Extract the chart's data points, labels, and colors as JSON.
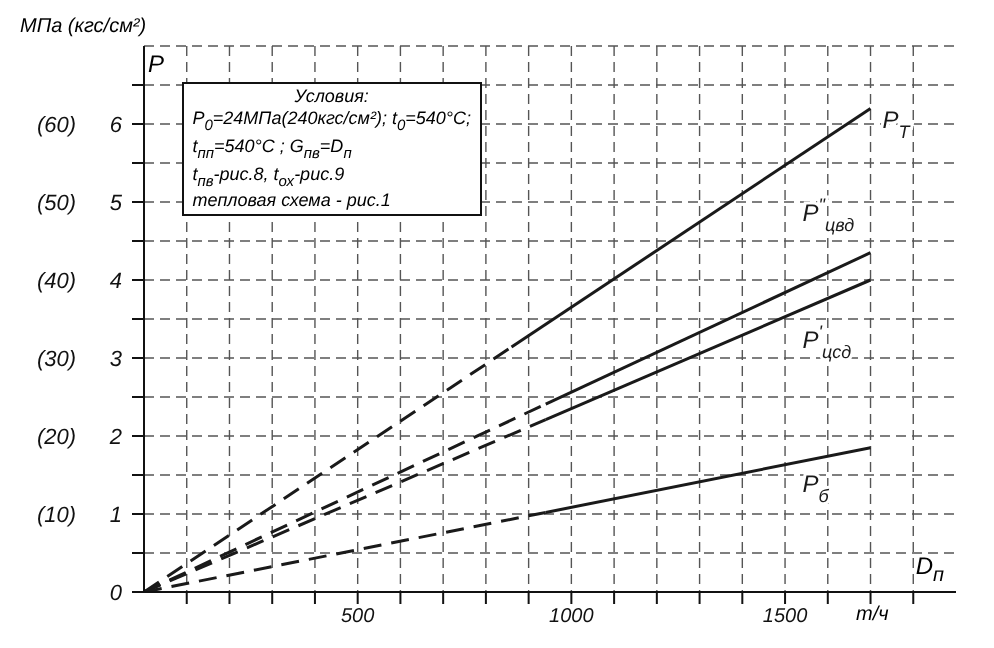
{
  "chart_data": {
    "type": "line",
    "xlabel": "D$_{п}$",
    "ylabel": "P",
    "annotations": [
      "МПа (кгс/см²)",
      "т/ч",
      "Условия:",
      "P$_{0}$=24МПа(240кгс/см²); t$_{0}$=540°C;",
      "t$_{пп}$=540°C ;  G$_{пв}$=D$_{п}$",
      "t$_{пв}$-рис.8,   t$_{ох}$-рис.9",
      "тепловая схема - рис.1"
    ],
    "xlim": [
      0,
      1900
    ],
    "ylim": [
      0,
      7
    ],
    "xticks": [
      {
        "value": 100,
        "label": null
      },
      {
        "value": 200,
        "label": null
      },
      {
        "value": 300,
        "label": null
      },
      {
        "value": 400,
        "label": null
      },
      500,
      {
        "value": 600,
        "label": null
      },
      {
        "value": 700,
        "label": null
      },
      {
        "value": 800,
        "label": null
      },
      {
        "value": 900,
        "label": null
      },
      1000,
      {
        "value": 1100,
        "label": null
      },
      {
        "value": 1200,
        "label": null
      },
      {
        "value": 1300,
        "label": null
      },
      {
        "value": 1400,
        "label": null
      },
      1500,
      {
        "value": 1600,
        "label": null
      },
      {
        "value": 1700,
        "label": null
      },
      {
        "value": 1800,
        "label": null
      }
    ],
    "yticks": [
      0,
      {
        "value": 0.5,
        "label": null
      },
      1,
      {
        "value": 1.5,
        "label": null
      },
      2,
      {
        "value": 2.5,
        "label": null
      },
      3,
      {
        "value": 3.5,
        "label": null
      },
      4,
      {
        "value": 4.5,
        "label": null
      },
      5,
      {
        "value": 5.5,
        "label": null
      },
      6,
      {
        "value": 6.5,
        "label": null
      }
    ],
    "y2lim": [
      0,
      70
    ],
    "y2ticks": [
      {
        "value": 10,
        "label": "(10)"
      },
      {
        "value": 20,
        "label": "(20)"
      },
      {
        "value": 30,
        "label": "(30)"
      },
      {
        "value": 40,
        "label": "(40)"
      },
      {
        "value": 50,
        "label": "(50)"
      },
      {
        "value": 60,
        "label": "(60)"
      }
    ],
    "grid": true,
    "marker": "none",
    "series": [
      {
        "color": "#1a1a1a",
        "line_style": "dashed",
        "x": [
          0,
          860
        ],
        "values": [
          0,
          3.14
        ]
      },
      {
        "name": "P$_{T}$",
        "color": "#1a1a1a",
        "line_style": "solid",
        "x": [
          860,
          1700
        ],
        "values": [
          3.14,
          6.2
        ]
      },
      {
        "color": "#1a1a1a",
        "line_style": "dashed",
        "x": [
          0,
          940
        ],
        "values": [
          0,
          2.41
        ]
      },
      {
        "name": "P$^{\"}$$_{цвд}$",
        "color": "#1a1a1a",
        "line_style": "solid",
        "x": [
          940,
          1700
        ],
        "values": [
          2.41,
          4.35
        ]
      },
      {
        "color": "#1a1a1a",
        "line_style": "dashed",
        "x": [
          0,
          940
        ],
        "values": [
          0,
          2.21
        ]
      },
      {
        "name": "P$^{'}$$_{цсд}$",
        "color": "#1a1a1a",
        "line_style": "solid",
        "x": [
          940,
          1700
        ],
        "values": [
          2.21,
          4.0
        ]
      },
      {
        "color": "#1a1a1a",
        "line_style": "dashed",
        "x": [
          0,
          940
        ],
        "values": [
          0,
          1.02
        ]
      },
      {
        "name": "P$_{б}$",
        "color": "#1a1a1a",
        "line_style": "solid",
        "x": [
          940,
          1700
        ],
        "values": [
          1.02,
          1.85
        ]
      }
    ]
  }
}
